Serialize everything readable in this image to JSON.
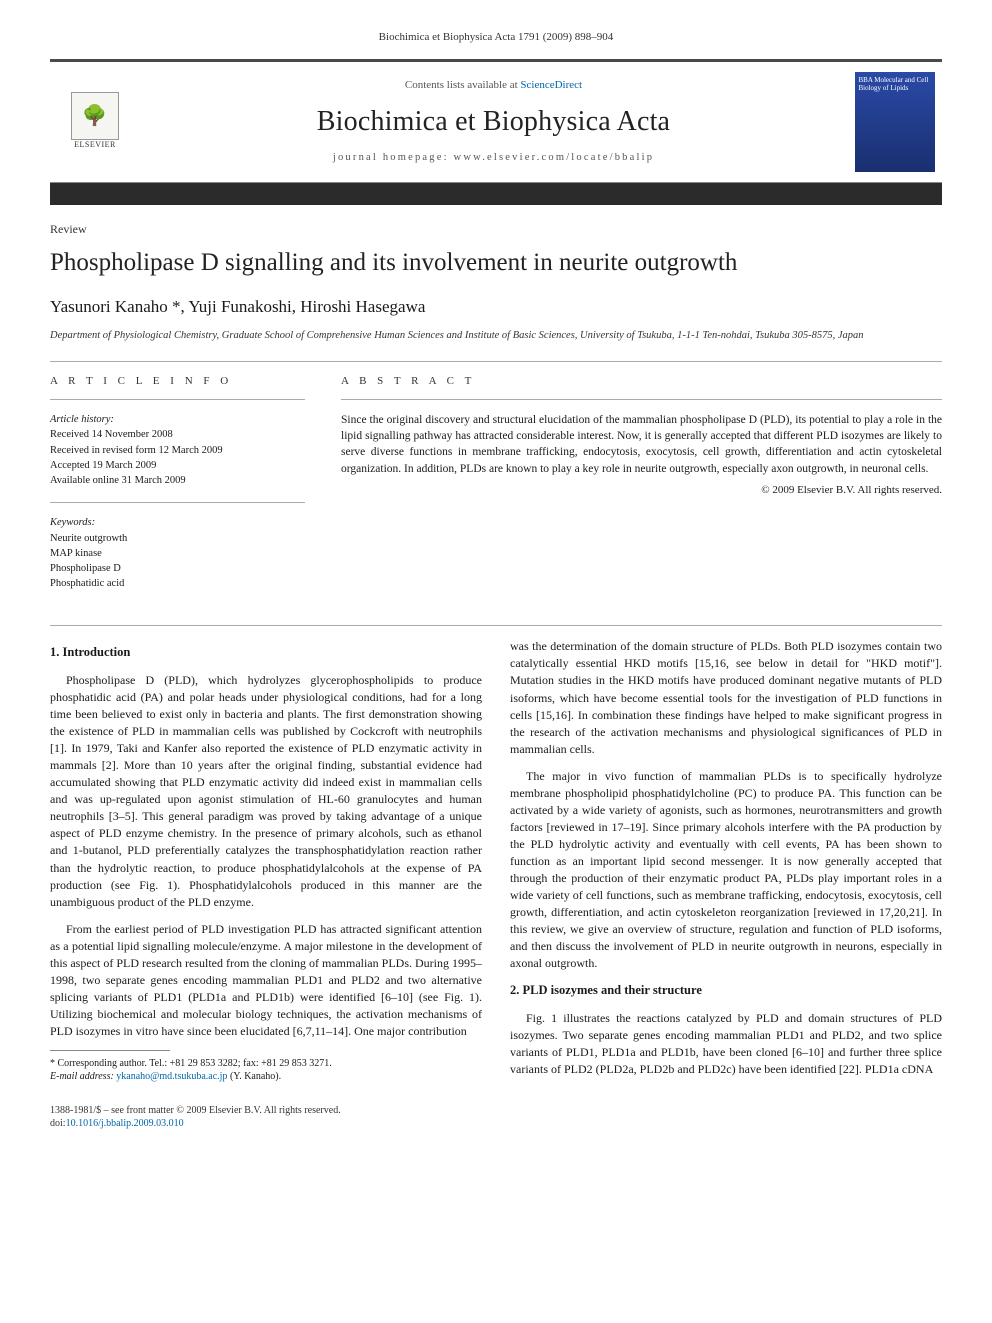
{
  "running_head": "Biochimica et Biophysica Acta 1791 (2009) 898–904",
  "masthead": {
    "contents_prefix": "Contents lists available at ",
    "contents_link": "ScienceDirect",
    "journal": "Biochimica et Biophysica Acta",
    "homepage_label": "journal homepage: ",
    "homepage_url": "www.elsevier.com/locate/bbalip",
    "publisher_label": "ELSEVIER",
    "cover_text": "BBA\nMolecular and Cell Biology of Lipids"
  },
  "article": {
    "type": "Review",
    "title": "Phospholipase D signalling and its involvement in neurite outgrowth",
    "authors": "Yasunori Kanaho *, Yuji Funakoshi, Hiroshi Hasegawa",
    "affiliation": "Department of Physiological Chemistry, Graduate School of Comprehensive Human Sciences and Institute of Basic Sciences, University of Tsukuba, 1-1-1 Ten-nohdai, Tsukuba 305-8575, Japan"
  },
  "info": {
    "heading": "A R T I C L E   I N F O",
    "history_label": "Article history:",
    "history": [
      "Received 14 November 2008",
      "Received in revised form 12 March 2009",
      "Accepted 19 March 2009",
      "Available online 31 March 2009"
    ],
    "keywords_label": "Keywords:",
    "keywords": [
      "Neurite outgrowth",
      "MAP kinase",
      "Phospholipase D",
      "Phosphatidic acid"
    ]
  },
  "abstract": {
    "heading": "A B S T R A C T",
    "text": "Since the original discovery and structural elucidation of the mammalian phospholipase D (PLD), its potential to play a role in the lipid signalling pathway has attracted considerable interest. Now, it is generally accepted that different PLD isozymes are likely to serve diverse functions in membrane trafficking, endocytosis, exocytosis, cell growth, differentiation and actin cytoskeletal organization. In addition, PLDs are known to play a key role in neurite outgrowth, especially axon outgrowth, in neuronal cells.",
    "copyright": "© 2009 Elsevier B.V. All rights reserved."
  },
  "sections": {
    "s1_title": "1. Introduction",
    "s1_p1": "Phospholipase D (PLD), which hydrolyzes glycerophospholipids to produce phosphatidic acid (PA) and polar heads under physiological conditions, had for a long time been believed to exist only in bacteria and plants. The first demonstration showing the existence of PLD in mammalian cells was published by Cockcroft with neutrophils [1]. In 1979, Taki and Kanfer also reported the existence of PLD enzymatic activity in mammals [2]. More than 10 years after the original finding, substantial evidence had accumulated showing that PLD enzymatic activity did indeed exist in mammalian cells and was up-regulated upon agonist stimulation of HL-60 granulocytes and human neutrophils [3–5]. This general paradigm was proved by taking advantage of a unique aspect of PLD enzyme chemistry. In the presence of primary alcohols, such as ethanol and 1-butanol, PLD preferentially catalyzes the transphosphatidylation reaction rather than the hydrolytic reaction, to produce phosphatidylalcohols at the expense of PA production (see Fig. 1). Phosphatidylalcohols produced in this manner are the unambiguous product of the PLD enzyme.",
    "s1_p2": "From the earliest period of PLD investigation PLD has attracted significant attention as a potential lipid signalling molecule/enzyme. A major milestone in the development of this aspect of PLD research resulted from the cloning of mammalian PLDs. During 1995–1998, two separate genes encoding mammalian PLD1 and PLD2 and two alternative splicing variants of PLD1 (PLD1a and PLD1b) were identified [6–10] (see Fig. 1). Utilizing biochemical and molecular biology techniques, the activation mechanisms of PLD isozymes in vitro have since been elucidated [6,7,11–14]. One major contribution",
    "s1_p3": "was the determination of the domain structure of PLDs. Both PLD isozymes contain two catalytically essential HKD motifs [15,16, see below in detail for \"HKD motif\"]. Mutation studies in the HKD motifs have produced dominant negative mutants of PLD isoforms, which have become essential tools for the investigation of PLD functions in cells [15,16]. In combination these findings have helped to make significant progress in the research of the activation mechanisms and physiological significances of PLD in mammalian cells.",
    "s1_p4": "The major in vivo function of mammalian PLDs is to specifically hydrolyze membrane phospholipid phosphatidylcholine (PC) to produce PA. This function can be activated by a wide variety of agonists, such as hormones, neurotransmitters and growth factors [reviewed in 17–19]. Since primary alcohols interfere with the PA production by the PLD hydrolytic activity and eventually with cell events, PA has been shown to function as an important lipid second messenger. It is now generally accepted that through the production of their enzymatic product PA, PLDs play important roles in a wide variety of cell functions, such as membrane trafficking, endocytosis, exocytosis, cell growth, differentiation, and actin cytoskeleton reorganization [reviewed in 17,20,21]. In this review, we give an overview of structure, regulation and function of PLD isoforms, and then discuss the involvement of PLD in neurite outgrowth in neurons, especially in axonal outgrowth.",
    "s2_title": "2. PLD isozymes and their structure",
    "s2_p1": "Fig. 1 illustrates the reactions catalyzed by PLD and domain structures of PLD isozymes. Two separate genes encoding mammalian PLD1 and PLD2, and two splice variants of PLD1, PLD1a and PLD1b, have been cloned [6–10] and further three splice variants of PLD2 (PLD2a, PLD2b and PLD2c) have been identified [22]. PLD1a cDNA"
  },
  "footnotes": {
    "corr": "* Corresponding author. Tel.: +81 29 853 3282; fax: +81 29 853 3271.",
    "email_label": "E-mail address: ",
    "email": "ykanaho@md.tsukuba.ac.jp",
    "email_suffix": " (Y. Kanaho)."
  },
  "footer": {
    "line1": "1388-1981/$ – see front matter © 2009 Elsevier B.V. All rights reserved.",
    "doi_prefix": "doi:",
    "doi": "10.1016/j.bbalip.2009.03.010"
  },
  "colors": {
    "link": "#0066aa",
    "rule": "#4a4a4a",
    "cover_bg_top": "#2a4aa8",
    "cover_bg_bottom": "#1a2f6f"
  }
}
